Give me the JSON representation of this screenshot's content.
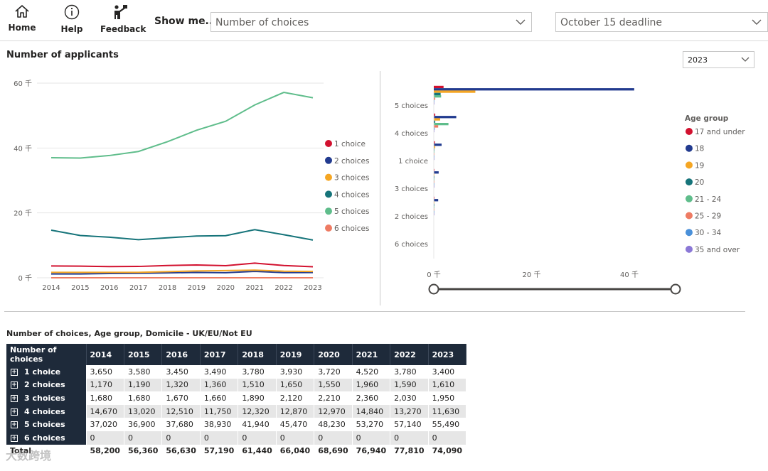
{
  "nav": {
    "home": "Home",
    "help": "Help",
    "feedback": "Feedback"
  },
  "filters": {
    "show_me_label": "Show me...",
    "show_me_value": "Number of choices",
    "deadline_value": "October 15 deadline",
    "year_value": "2023"
  },
  "section_title": "Number of applicants",
  "colors": {
    "c1": "#d2112f",
    "c2": "#223b8f",
    "c3": "#f5a623",
    "c4": "#16747a",
    "c5": "#5fbd8b",
    "c6": "#ee7b63",
    "c7": "#4a90d9",
    "c8": "#8b78d6"
  },
  "line_chart": {
    "type": "line",
    "x": [
      "2014",
      "2015",
      "2016",
      "2017",
      "2018",
      "2019",
      "2020",
      "2021",
      "2022",
      "2023"
    ],
    "y_ticks": [
      "60 千",
      "40 千",
      "20 千",
      "0 千"
    ],
    "ylim": [
      0,
      60000
    ],
    "series": [
      {
        "name": "1 choice",
        "color": "#d2112f",
        "values": [
          3650,
          3580,
          3450,
          3490,
          3780,
          3930,
          3720,
          4520,
          3780,
          3400
        ]
      },
      {
        "name": "2 choices",
        "color": "#223b8f",
        "values": [
          1170,
          1190,
          1320,
          1360,
          1510,
          1650,
          1550,
          1960,
          1590,
          1610
        ]
      },
      {
        "name": "3 choices",
        "color": "#f5a623",
        "values": [
          1680,
          1680,
          1670,
          1660,
          1890,
          2120,
          2210,
          2360,
          2030,
          1950
        ]
      },
      {
        "name": "4 choices",
        "color": "#16747a",
        "values": [
          14670,
          13020,
          12510,
          11750,
          12320,
          12870,
          12970,
          14840,
          13270,
          11630
        ]
      },
      {
        "name": "5 choices",
        "color": "#5fbd8b",
        "values": [
          37020,
          36900,
          37680,
          38930,
          41940,
          45470,
          48230,
          53270,
          57140,
          55490
        ]
      },
      {
        "name": "6 choices",
        "color": "#ee7b63",
        "values": [
          0,
          0,
          0,
          0,
          0,
          0,
          0,
          0,
          0,
          0
        ]
      }
    ]
  },
  "bar_chart": {
    "type": "bar",
    "orientation": "horizontal",
    "categories": [
      "5 choices",
      "4 choices",
      "1 choice",
      "3 choices",
      "2 choices",
      "6 choices"
    ],
    "x_ticks": [
      "0 千",
      "20 千",
      "40 千"
    ],
    "xlim": [
      0,
      48000
    ],
    "legend_title": "Age group",
    "series": [
      {
        "name": "17 and under",
        "color": "#d2112f",
        "values": [
          2000,
          300,
          250,
          80,
          60,
          0
        ]
      },
      {
        "name": "18",
        "color": "#223b8f",
        "values": [
          41000,
          4600,
          1600,
          1000,
          900,
          0
        ]
      },
      {
        "name": "19",
        "color": "#f5a623",
        "values": [
          8500,
          1300,
          300,
          150,
          120,
          0
        ]
      },
      {
        "name": "20",
        "color": "#16747a",
        "values": [
          1400,
          300,
          100,
          50,
          40,
          0
        ]
      },
      {
        "name": "21 - 24",
        "color": "#5fbd8b",
        "values": [
          1500,
          3000,
          150,
          80,
          60,
          0
        ]
      },
      {
        "name": "25 - 29",
        "color": "#ee7b63",
        "values": [
          300,
          900,
          80,
          40,
          30,
          0
        ]
      },
      {
        "name": "30 - 34",
        "color": "#4a90d9",
        "values": [
          100,
          200,
          40,
          20,
          15,
          0
        ]
      },
      {
        "name": "35 and over",
        "color": "#8b78d6",
        "values": [
          60,
          100,
          30,
          15,
          10,
          0
        ]
      }
    ]
  },
  "table": {
    "title": "Number of choices, Age group, Domicile - UK/EU/Not EU",
    "header_label": "Number of choices",
    "years": [
      "2014",
      "2015",
      "2016",
      "2017",
      "2018",
      "2019",
      "2020",
      "2021",
      "2022",
      "2023"
    ],
    "rows": [
      {
        "label": "1 choice",
        "values": [
          "3,650",
          "3,580",
          "3,450",
          "3,490",
          "3,780",
          "3,930",
          "3,720",
          "4,520",
          "3,780",
          "3,400"
        ]
      },
      {
        "label": "2 choices",
        "values": [
          "1,170",
          "1,190",
          "1,320",
          "1,360",
          "1,510",
          "1,650",
          "1,550",
          "1,960",
          "1,590",
          "1,610"
        ]
      },
      {
        "label": "3 choices",
        "values": [
          "1,680",
          "1,680",
          "1,670",
          "1,660",
          "1,890",
          "2,120",
          "2,210",
          "2,360",
          "2,030",
          "1,950"
        ]
      },
      {
        "label": "4 choices",
        "values": [
          "14,670",
          "13,020",
          "12,510",
          "11,750",
          "12,320",
          "12,870",
          "12,970",
          "14,840",
          "13,270",
          "11,630"
        ]
      },
      {
        "label": "5 choices",
        "values": [
          "37,020",
          "36,900",
          "37,680",
          "38,930",
          "41,940",
          "45,470",
          "48,230",
          "53,270",
          "57,140",
          "55,490"
        ]
      },
      {
        "label": "6 choices",
        "values": [
          "0",
          "0",
          "0",
          "0",
          "0",
          "0",
          "0",
          "0",
          "0",
          "0"
        ]
      }
    ],
    "total": {
      "label": "Total",
      "values": [
        "58,200",
        "56,360",
        "56,630",
        "57,190",
        "61,440",
        "66,040",
        "68,690",
        "76,940",
        "77,810",
        "74,090"
      ]
    }
  },
  "watermark": "大数跨境"
}
